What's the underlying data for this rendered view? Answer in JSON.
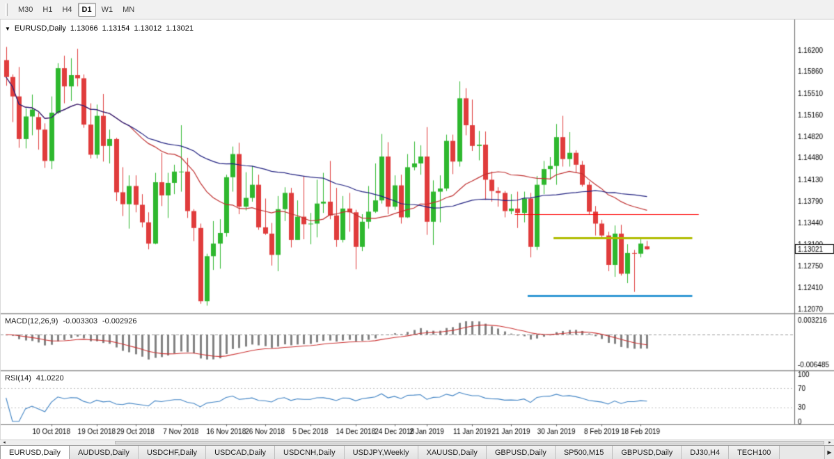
{
  "icons": {
    "dropdown_triangle": "▼",
    "scroll_left": "◂",
    "scroll_right": "▸",
    "tab_scroll_right": "▶"
  },
  "toolbar": {
    "timeframes": [
      {
        "label": "M30",
        "active": false
      },
      {
        "label": "H1",
        "active": false
      },
      {
        "label": "H4",
        "active": false
      },
      {
        "label": "D1",
        "active": true
      },
      {
        "label": "W1",
        "active": false
      },
      {
        "label": "MN",
        "active": false
      }
    ]
  },
  "chart": {
    "title": {
      "symbol": "EURUSD,Daily",
      "open": "1.13066",
      "high": "1.13154",
      "low": "1.13012",
      "close": "1.13021"
    },
    "price_scale": [
      "1.16200",
      "1.15860",
      "1.15510",
      "1.15160",
      "1.14820",
      "1.14480",
      "1.14130",
      "1.13790",
      "1.13440",
      "1.13100",
      "1.12750",
      "1.12410",
      "1.12070"
    ],
    "current_price": "1.13021",
    "macd": {
      "label": "MACD(12,26,9)",
      "value_main": "-0.003303",
      "value_signal": "-0.002926"
    },
    "macd_scale": {
      "top": "0.003216",
      "bottom": "-0.006485"
    },
    "rsi": {
      "label": "RSI(14)",
      "value": "41.0220"
    },
    "rsi_scale": [
      "100",
      "70",
      "30",
      "0"
    ],
    "date_labels": [
      {
        "text": "10 Oct 2018",
        "index": 7
      },
      {
        "text": "19 Oct 2018",
        "index": 14
      },
      {
        "text": "29 Oct 2018",
        "index": 20
      },
      {
        "text": "7 Nov 2018",
        "index": 27
      },
      {
        "text": "16 Nov 2018",
        "index": 34
      },
      {
        "text": "26 Nov 2018",
        "index": 40
      },
      {
        "text": "5 Dec 2018",
        "index": 47
      },
      {
        "text": "14 Dec 2018",
        "index": 54
      },
      {
        "text": "24 Dec 2018",
        "index": 60
      },
      {
        "text": "2 Jan 2019",
        "index": 65
      },
      {
        "text": "11 Jan 2019",
        "index": 72
      },
      {
        "text": "21 Jan 2019",
        "index": 78
      },
      {
        "text": "30 Jan 2019",
        "index": 85
      },
      {
        "text": "8 Feb 2019",
        "index": 92
      },
      {
        "text": "18 Feb 2019",
        "index": 98
      }
    ]
  },
  "chart_data": {
    "type": "candlestick",
    "symbol": "EURUSD",
    "timeframe": "Daily",
    "title": "EURUSD,Daily 1.13066 1.13154 1.13012 1.13021",
    "colors": {
      "up": "#2eb82e",
      "down": "#e03c3c"
    },
    "ohlc": [
      [
        1.1604,
        1.1625,
        1.1563,
        1.1577
      ],
      [
        1.1577,
        1.1581,
        1.1505,
        1.1546
      ],
      [
        1.1546,
        1.1593,
        1.1464,
        1.1478
      ],
      [
        1.1478,
        1.1527,
        1.1463,
        1.1514
      ],
      [
        1.1514,
        1.1549,
        1.1484,
        1.1525
      ],
      [
        1.1513,
        1.152,
        1.1461,
        1.1493
      ],
      [
        1.1493,
        1.1503,
        1.1432,
        1.1443
      ],
      [
        1.1443,
        1.1546,
        1.143,
        1.152
      ],
      [
        1.152,
        1.1599,
        1.1518,
        1.1591
      ],
      [
        1.1591,
        1.1611,
        1.1535,
        1.1562
      ],
      [
        1.1562,
        1.1607,
        1.1539,
        1.158
      ],
      [
        1.158,
        1.1622,
        1.1562,
        1.1575
      ],
      [
        1.1575,
        1.1581,
        1.1496,
        1.1501
      ],
      [
        1.1501,
        1.1535,
        1.1447,
        1.1453
      ],
      [
        1.1453,
        1.1533,
        1.1447,
        1.1515
      ],
      [
        1.1515,
        1.155,
        1.1442,
        1.1467
      ],
      [
        1.1467,
        1.1493,
        1.1439,
        1.1478
      ],
      [
        1.1478,
        1.148,
        1.1379,
        1.1393
      ],
      [
        1.1393,
        1.1433,
        1.1355,
        1.1374
      ],
      [
        1.1374,
        1.142,
        1.1335,
        1.1403
      ],
      [
        1.1403,
        1.142,
        1.1361,
        1.1373
      ],
      [
        1.1373,
        1.139,
        1.1337,
        1.1345
      ],
      [
        1.1345,
        1.1361,
        1.1302,
        1.1311
      ],
      [
        1.1311,
        1.1424,
        1.131,
        1.1409
      ],
      [
        1.1409,
        1.1456,
        1.1371,
        1.1388
      ],
      [
        1.1388,
        1.1424,
        1.1352,
        1.1408
      ],
      [
        1.1408,
        1.1437,
        1.139,
        1.1426
      ],
      [
        1.1426,
        1.15,
        1.1394,
        1.1426
      ],
      [
        1.1426,
        1.1448,
        1.1352,
        1.1363
      ],
      [
        1.1363,
        1.1366,
        1.1315,
        1.1336
      ],
      [
        1.1336,
        1.1343,
        1.1215,
        1.1219
      ],
      [
        1.1219,
        1.1295,
        1.1212,
        1.1291
      ],
      [
        1.1291,
        1.1347,
        1.1269,
        1.1311
      ],
      [
        1.1311,
        1.135,
        1.1271,
        1.1328
      ],
      [
        1.1328,
        1.1421,
        1.1322,
        1.1417
      ],
      [
        1.1417,
        1.1466,
        1.1394,
        1.1454
      ],
      [
        1.1454,
        1.1472,
        1.1358,
        1.137
      ],
      [
        1.137,
        1.1425,
        1.1364,
        1.1384
      ],
      [
        1.1384,
        1.1435,
        1.1378,
        1.1405
      ],
      [
        1.1405,
        1.1421,
        1.1333,
        1.1337
      ],
      [
        1.1337,
        1.1383,
        1.1325,
        1.1327
      ],
      [
        1.1327,
        1.1344,
        1.1276,
        1.1293
      ],
      [
        1.1293,
        1.1387,
        1.1267,
        1.1366
      ],
      [
        1.1366,
        1.1401,
        1.1347,
        1.1392
      ],
      [
        1.1392,
        1.14,
        1.1305,
        1.1317
      ],
      [
        1.1317,
        1.138,
        1.1317,
        1.1354
      ],
      [
        1.1354,
        1.1419,
        1.1318,
        1.1342
      ],
      [
        1.1342,
        1.136,
        1.131,
        1.1343
      ],
      [
        1.1343,
        1.1413,
        1.1321,
        1.1375
      ],
      [
        1.1375,
        1.1424,
        1.136,
        1.1378
      ],
      [
        1.1378,
        1.1443,
        1.135,
        1.1356
      ],
      [
        1.1356,
        1.14,
        1.1306,
        1.1317
      ],
      [
        1.1317,
        1.1387,
        1.1313,
        1.1367
      ],
      [
        1.1367,
        1.1392,
        1.133,
        1.1361
      ],
      [
        1.1361,
        1.1365,
        1.127,
        1.1306
      ],
      [
        1.1306,
        1.1358,
        1.1299,
        1.1346
      ],
      [
        1.1346,
        1.1403,
        1.1335,
        1.1362
      ],
      [
        1.1362,
        1.1439,
        1.136,
        1.138
      ],
      [
        1.138,
        1.1486,
        1.1375,
        1.145
      ],
      [
        1.145,
        1.1473,
        1.1358,
        1.137
      ],
      [
        1.137,
        1.142,
        1.1365,
        1.1404
      ],
      [
        1.1404,
        1.1421,
        1.1343,
        1.1353
      ],
      [
        1.1353,
        1.1454,
        1.1352,
        1.1433
      ],
      [
        1.1433,
        1.1474,
        1.1428,
        1.1439
      ],
      [
        1.1439,
        1.1468,
        1.1421,
        1.145
      ],
      [
        1.145,
        1.1497,
        1.1325,
        1.1346
      ],
      [
        1.1346,
        1.1412,
        1.1309,
        1.1394
      ],
      [
        1.1394,
        1.142,
        1.1345,
        1.1399
      ],
      [
        1.1399,
        1.1485,
        1.1395,
        1.1475
      ],
      [
        1.1475,
        1.1485,
        1.1422,
        1.1442
      ],
      [
        1.1442,
        1.157,
        1.1434,
        1.1543
      ],
      [
        1.1543,
        1.1559,
        1.1484,
        1.15
      ],
      [
        1.15,
        1.1541,
        1.1459,
        1.1467
      ],
      [
        1.1467,
        1.1491,
        1.1444,
        1.1469
      ],
      [
        1.1469,
        1.149,
        1.1381,
        1.1413
      ],
      [
        1.1413,
        1.1426,
        1.1378,
        1.1395
      ],
      [
        1.1395,
        1.1401,
        1.137,
        1.1392
      ],
      [
        1.1392,
        1.1395,
        1.1353,
        1.1363
      ],
      [
        1.1363,
        1.139,
        1.1358,
        1.1367
      ],
      [
        1.1367,
        1.1394,
        1.1336,
        1.136
      ],
      [
        1.136,
        1.1394,
        1.1345,
        1.1383
      ],
      [
        1.1383,
        1.1392,
        1.1289,
        1.1306
      ],
      [
        1.1306,
        1.1419,
        1.1301,
        1.1405
      ],
      [
        1.1405,
        1.1443,
        1.139,
        1.143
      ],
      [
        1.143,
        1.1449,
        1.1413,
        1.1435
      ],
      [
        1.1435,
        1.1502,
        1.1405,
        1.1481
      ],
      [
        1.1481,
        1.1515,
        1.1434,
        1.1446
      ],
      [
        1.1446,
        1.1489,
        1.1434,
        1.1456
      ],
      [
        1.1456,
        1.146,
        1.1424,
        1.1437
      ],
      [
        1.1437,
        1.1443,
        1.1402,
        1.1405
      ],
      [
        1.1405,
        1.141,
        1.1358,
        1.1362
      ],
      [
        1.1362,
        1.1371,
        1.1324,
        1.1343
      ],
      [
        1.1343,
        1.1349,
        1.132,
        1.1324
      ],
      [
        1.1324,
        1.133,
        1.1267,
        1.1277
      ],
      [
        1.1277,
        1.134,
        1.1258,
        1.1327
      ],
      [
        1.1327,
        1.1341,
        1.126,
        1.1263
      ],
      [
        1.1263,
        1.131,
        1.1248,
        1.1296
      ],
      [
        1.1296,
        1.1301,
        1.1234,
        1.1295
      ],
      [
        1.1295,
        1.1318,
        1.1289,
        1.1311
      ],
      [
        1.13066,
        1.13154,
        1.13012,
        1.13021
      ]
    ],
    "overlays": [
      {
        "name": "ma-fast",
        "type": "sma",
        "period": 20,
        "color": "#c03030"
      },
      {
        "name": "ma-slow",
        "type": "sma",
        "period": 50,
        "color": "#202080"
      }
    ],
    "hlines": [
      {
        "name": "resistance-red",
        "price": 1.1358,
        "color": "#ff0000",
        "width": 1,
        "from_index": 79,
        "to_index": 107
      },
      {
        "name": "level-olive",
        "price": 1.132,
        "color": "#b0bc00",
        "width": 3,
        "from_index": 85,
        "to_index": 106
      },
      {
        "name": "support-blue",
        "price": 1.1228,
        "color": "#2f97d4",
        "width": 3,
        "from_index": 81,
        "to_index": 106
      }
    ],
    "macd": {
      "fast": 12,
      "slow": 26,
      "signal": 9,
      "histogram_color": "#828282",
      "signal_color": "#cc3333"
    },
    "rsi": {
      "period": 14,
      "color": "#3e82c4"
    }
  },
  "tabs": {
    "items": [
      {
        "label": "EURUSD,Daily",
        "active": true
      },
      {
        "label": "AUDUSD,Daily",
        "active": false
      },
      {
        "label": "USDCHF,Daily",
        "active": false
      },
      {
        "label": "USDCAD,Daily",
        "active": false
      },
      {
        "label": "USDCNH,Daily",
        "active": false
      },
      {
        "label": "USDJPY,Weekly",
        "active": false
      },
      {
        "label": "XAUUSD,Daily",
        "active": false
      },
      {
        "label": "GBPUSD,Daily",
        "active": false
      },
      {
        "label": "SP500,M15",
        "active": false
      },
      {
        "label": "GBPUSD,Daily",
        "active": false
      },
      {
        "label": "DJ30,H4",
        "active": false
      },
      {
        "label": "TECH100",
        "active": false
      }
    ]
  }
}
